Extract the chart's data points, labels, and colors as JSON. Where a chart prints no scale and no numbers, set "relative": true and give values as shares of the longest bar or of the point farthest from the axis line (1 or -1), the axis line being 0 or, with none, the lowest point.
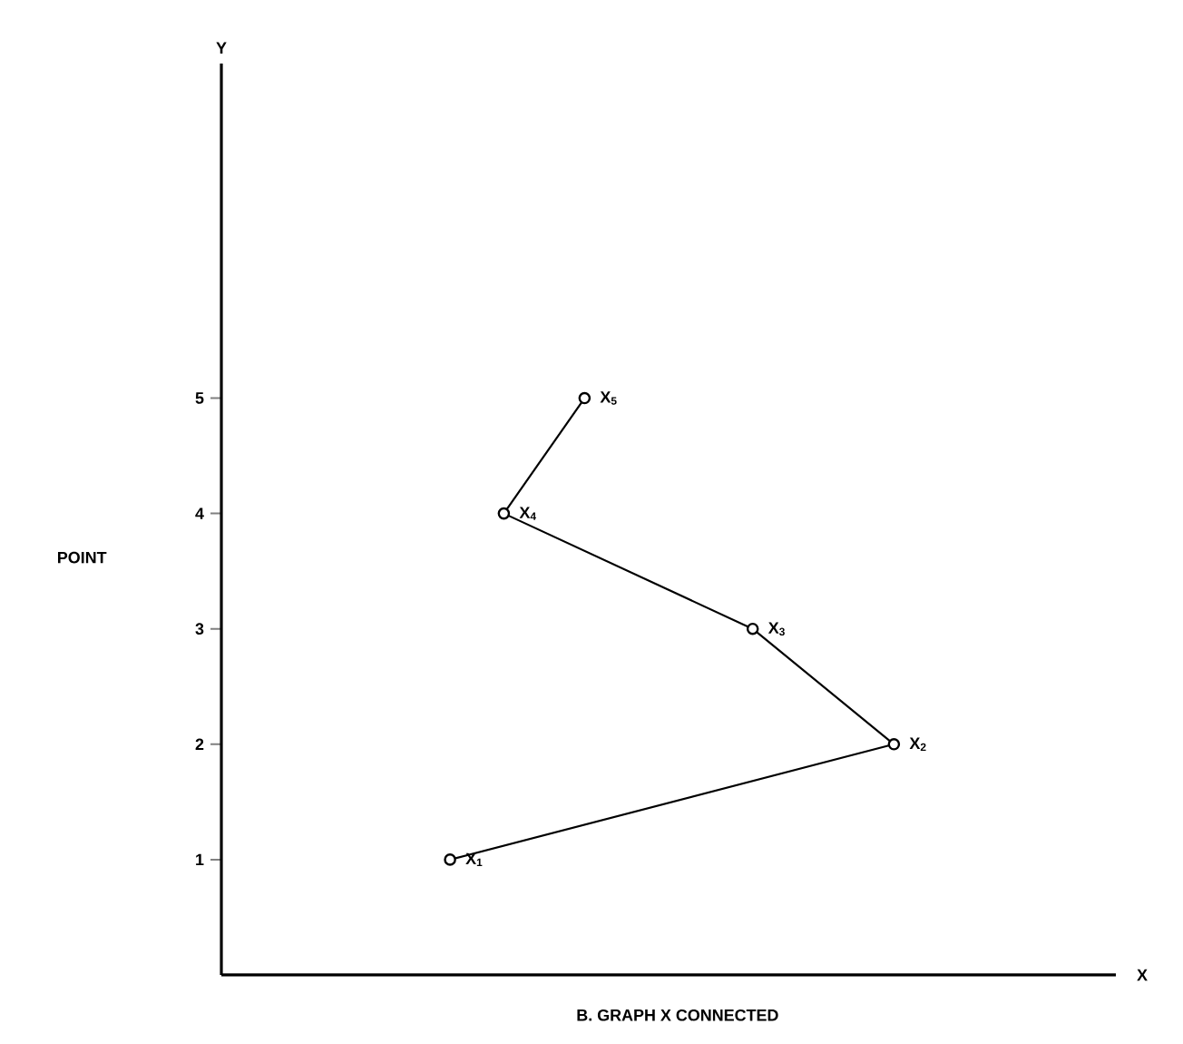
{
  "chart_data": {
    "type": "line",
    "orientation": "horizontal",
    "relative": true,
    "title": "B.    GRAPH X CONNECTED",
    "categories": [
      "5",
      "4",
      "3",
      "2",
      "1"
    ],
    "values": [
      0.54,
      0.42,
      0.79,
      1,
      0.34
    ],
    "color": "#000000",
    "marker": "circle",
    "line_style": "solid",
    "annotations": [
      "Y",
      "X",
      "POINT",
      {
        "text": "X$_{5}$",
        "x": 0.54,
        "y": "5"
      },
      {
        "text": "X$_{4}$",
        "x": 0.42,
        "y": "4"
      },
      {
        "text": "X$_{3}$",
        "x": 0.79,
        "y": "3"
      },
      {
        "text": "X$_{2}$",
        "x": 1,
        "y": "2"
      },
      {
        "text": "X$_{1}$",
        "x": 0.34,
        "y": "1"
      }
    ]
  }
}
